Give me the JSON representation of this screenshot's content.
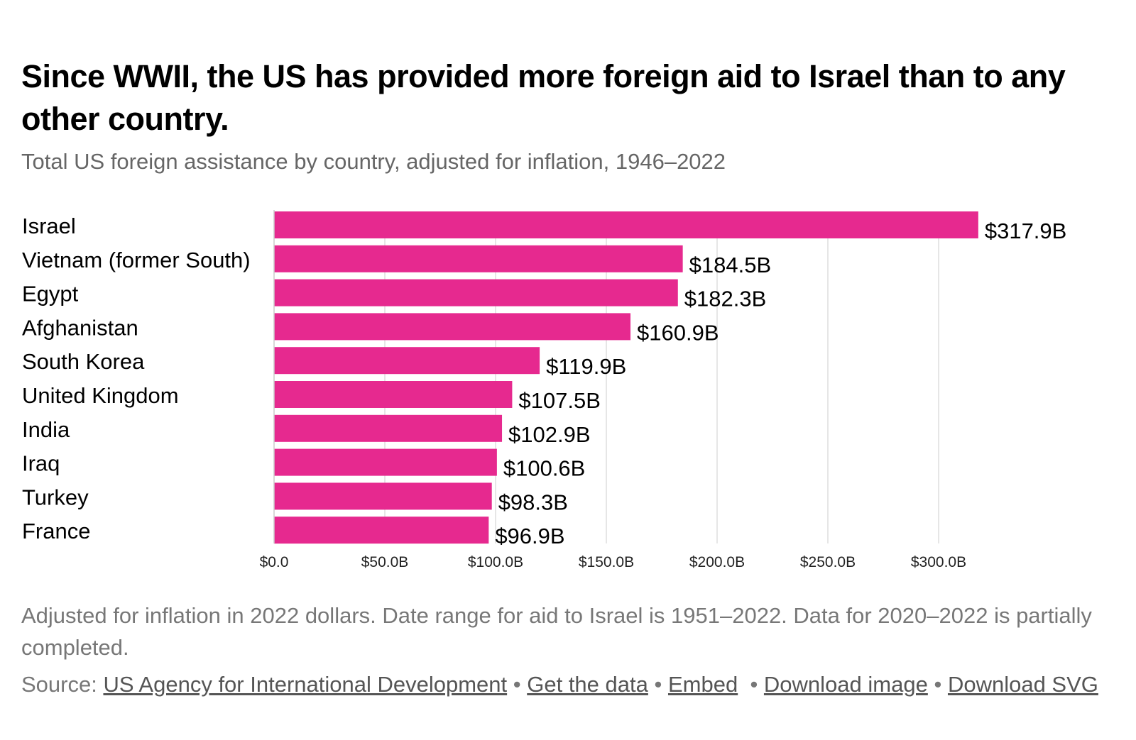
{
  "title": "Since WWII, the US has provided more foreign aid to Israel than to any other country.",
  "subtitle": "Total US foreign assistance by country, adjusted for inflation, 1946–2022",
  "colors": {
    "bar": "#e6298f",
    "grid": "#dddddd",
    "text": "#000000",
    "muted": "#777777"
  },
  "chart_data": {
    "type": "bar",
    "orientation": "horizontal",
    "categories": [
      "Israel",
      "Vietnam (former South)",
      "Egypt",
      "Afghanistan",
      "South Korea",
      "United Kingdom",
      "India",
      "Iraq",
      "Turkey",
      "France"
    ],
    "values": [
      317.9,
      184.5,
      182.3,
      160.9,
      119.9,
      107.5,
      102.9,
      100.6,
      98.3,
      96.9
    ],
    "value_labels": [
      "$317.9B",
      "$184.5B",
      "$182.3B",
      "$160.9B",
      "$119.9B",
      "$107.5B",
      "$102.9B",
      "$100.6B",
      "$98.3B",
      "$96.9B"
    ],
    "x_ticks": [
      0,
      50,
      100,
      150,
      200,
      250,
      300
    ],
    "x_tick_labels": [
      "$0.0",
      "$50.0B",
      "$100.0B",
      "$150.0B",
      "$200.0B",
      "$250.0B",
      "$300.0B"
    ],
    "xlim": [
      0,
      317.9
    ],
    "unit": "billion USD (2022 dollars)",
    "grid": true,
    "legend": "none",
    "xlabel": "",
    "ylabel": ""
  },
  "note": "Adjusted for inflation in 2022 dollars. Date range for aid to Israel is 1951–2022. Data for 2020–2022 is partially completed.",
  "source": {
    "label": "Source:",
    "link_usaid": "US Agency for International Development",
    "link_data": "Get the data",
    "link_embed": "Embed",
    "link_download_image": "Download image",
    "link_download_svg": "Download SVG",
    "separator": "•"
  }
}
